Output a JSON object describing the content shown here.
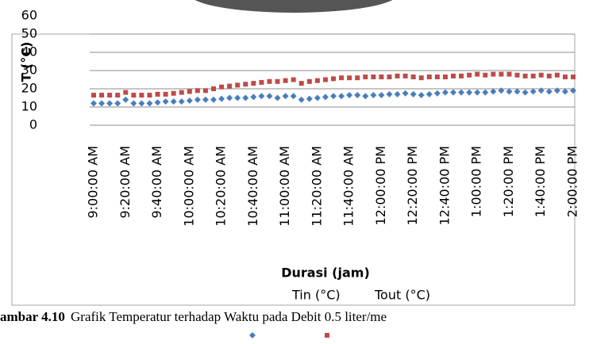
{
  "chart_data": {
    "type": "scatter",
    "y_axis_label": "T (°C)",
    "x_axis_label": "Durasi (jam)",
    "caption_bold": "ambar 4.10",
    "caption_text": "Grafik Temperatur terhadap Waktu pada Debit 0.5 liter/me",
    "categories": [
      "9:00:00 AM",
      null,
      null,
      null,
      "9:20:00 AM",
      null,
      null,
      null,
      "9:40:00 AM",
      null,
      null,
      null,
      "10:00:00 AM",
      null,
      null,
      null,
      "10:20:00 AM",
      null,
      null,
      null,
      "10:40:00 AM",
      null,
      null,
      null,
      "11:00:00 AM",
      null,
      null,
      null,
      "11:20:00 AM",
      null,
      null,
      null,
      "11:40:00 AM",
      null,
      null,
      null,
      "12:00:00 PM",
      null,
      null,
      null,
      "12:20:00 PM",
      null,
      null,
      null,
      "12:40:00 PM",
      null,
      null,
      null,
      "1:00:00 PM",
      null,
      null,
      null,
      "1:20:00 PM",
      null,
      null,
      null,
      "1:40:00 PM",
      null,
      null,
      null,
      "2:00:00 PM"
    ],
    "series": [
      {
        "name": "Tin (°C)",
        "color": "#4a7ebb",
        "marker": "diamond",
        "values": [
          12,
          12,
          12,
          12,
          14,
          12,
          12,
          12,
          12.5,
          13,
          13,
          13,
          13.5,
          14,
          14,
          14,
          14.5,
          15,
          15,
          15,
          15.5,
          16,
          16,
          15,
          16,
          16,
          14,
          14.5,
          15,
          15.5,
          16,
          16,
          16.5,
          16.5,
          16,
          16.5,
          16.5,
          17,
          17,
          17.5,
          17,
          16.5,
          17,
          17.5,
          18,
          18,
          18,
          18,
          18,
          18,
          18.5,
          19,
          18.5,
          18.5,
          18,
          18.5,
          19,
          18.5,
          19,
          18.5,
          19
        ]
      },
      {
        "name": "Tout (°C)",
        "color": "#be4b48",
        "marker": "square",
        "values": [
          16.5,
          16.5,
          16.5,
          16.5,
          18,
          16.5,
          16.5,
          16.5,
          17,
          17,
          17.5,
          18,
          18.5,
          19,
          19,
          20,
          21,
          21.5,
          22,
          22.5,
          23,
          23.5,
          24,
          24,
          24.5,
          25,
          23,
          24,
          24.5,
          25,
          25.5,
          26,
          26,
          26,
          26.5,
          26.5,
          26.5,
          26.5,
          27,
          27,
          26.5,
          26,
          26.5,
          26.5,
          26.5,
          27,
          27,
          27.5,
          28,
          27.5,
          28,
          28,
          28,
          27.5,
          27,
          27,
          27.5,
          27,
          27.5,
          26.5,
          26.5
        ]
      }
    ],
    "ylim": [
      0,
      60
    ],
    "yticks": [
      0,
      10,
      20,
      30,
      40,
      50,
      60
    ],
    "grid": true
  }
}
